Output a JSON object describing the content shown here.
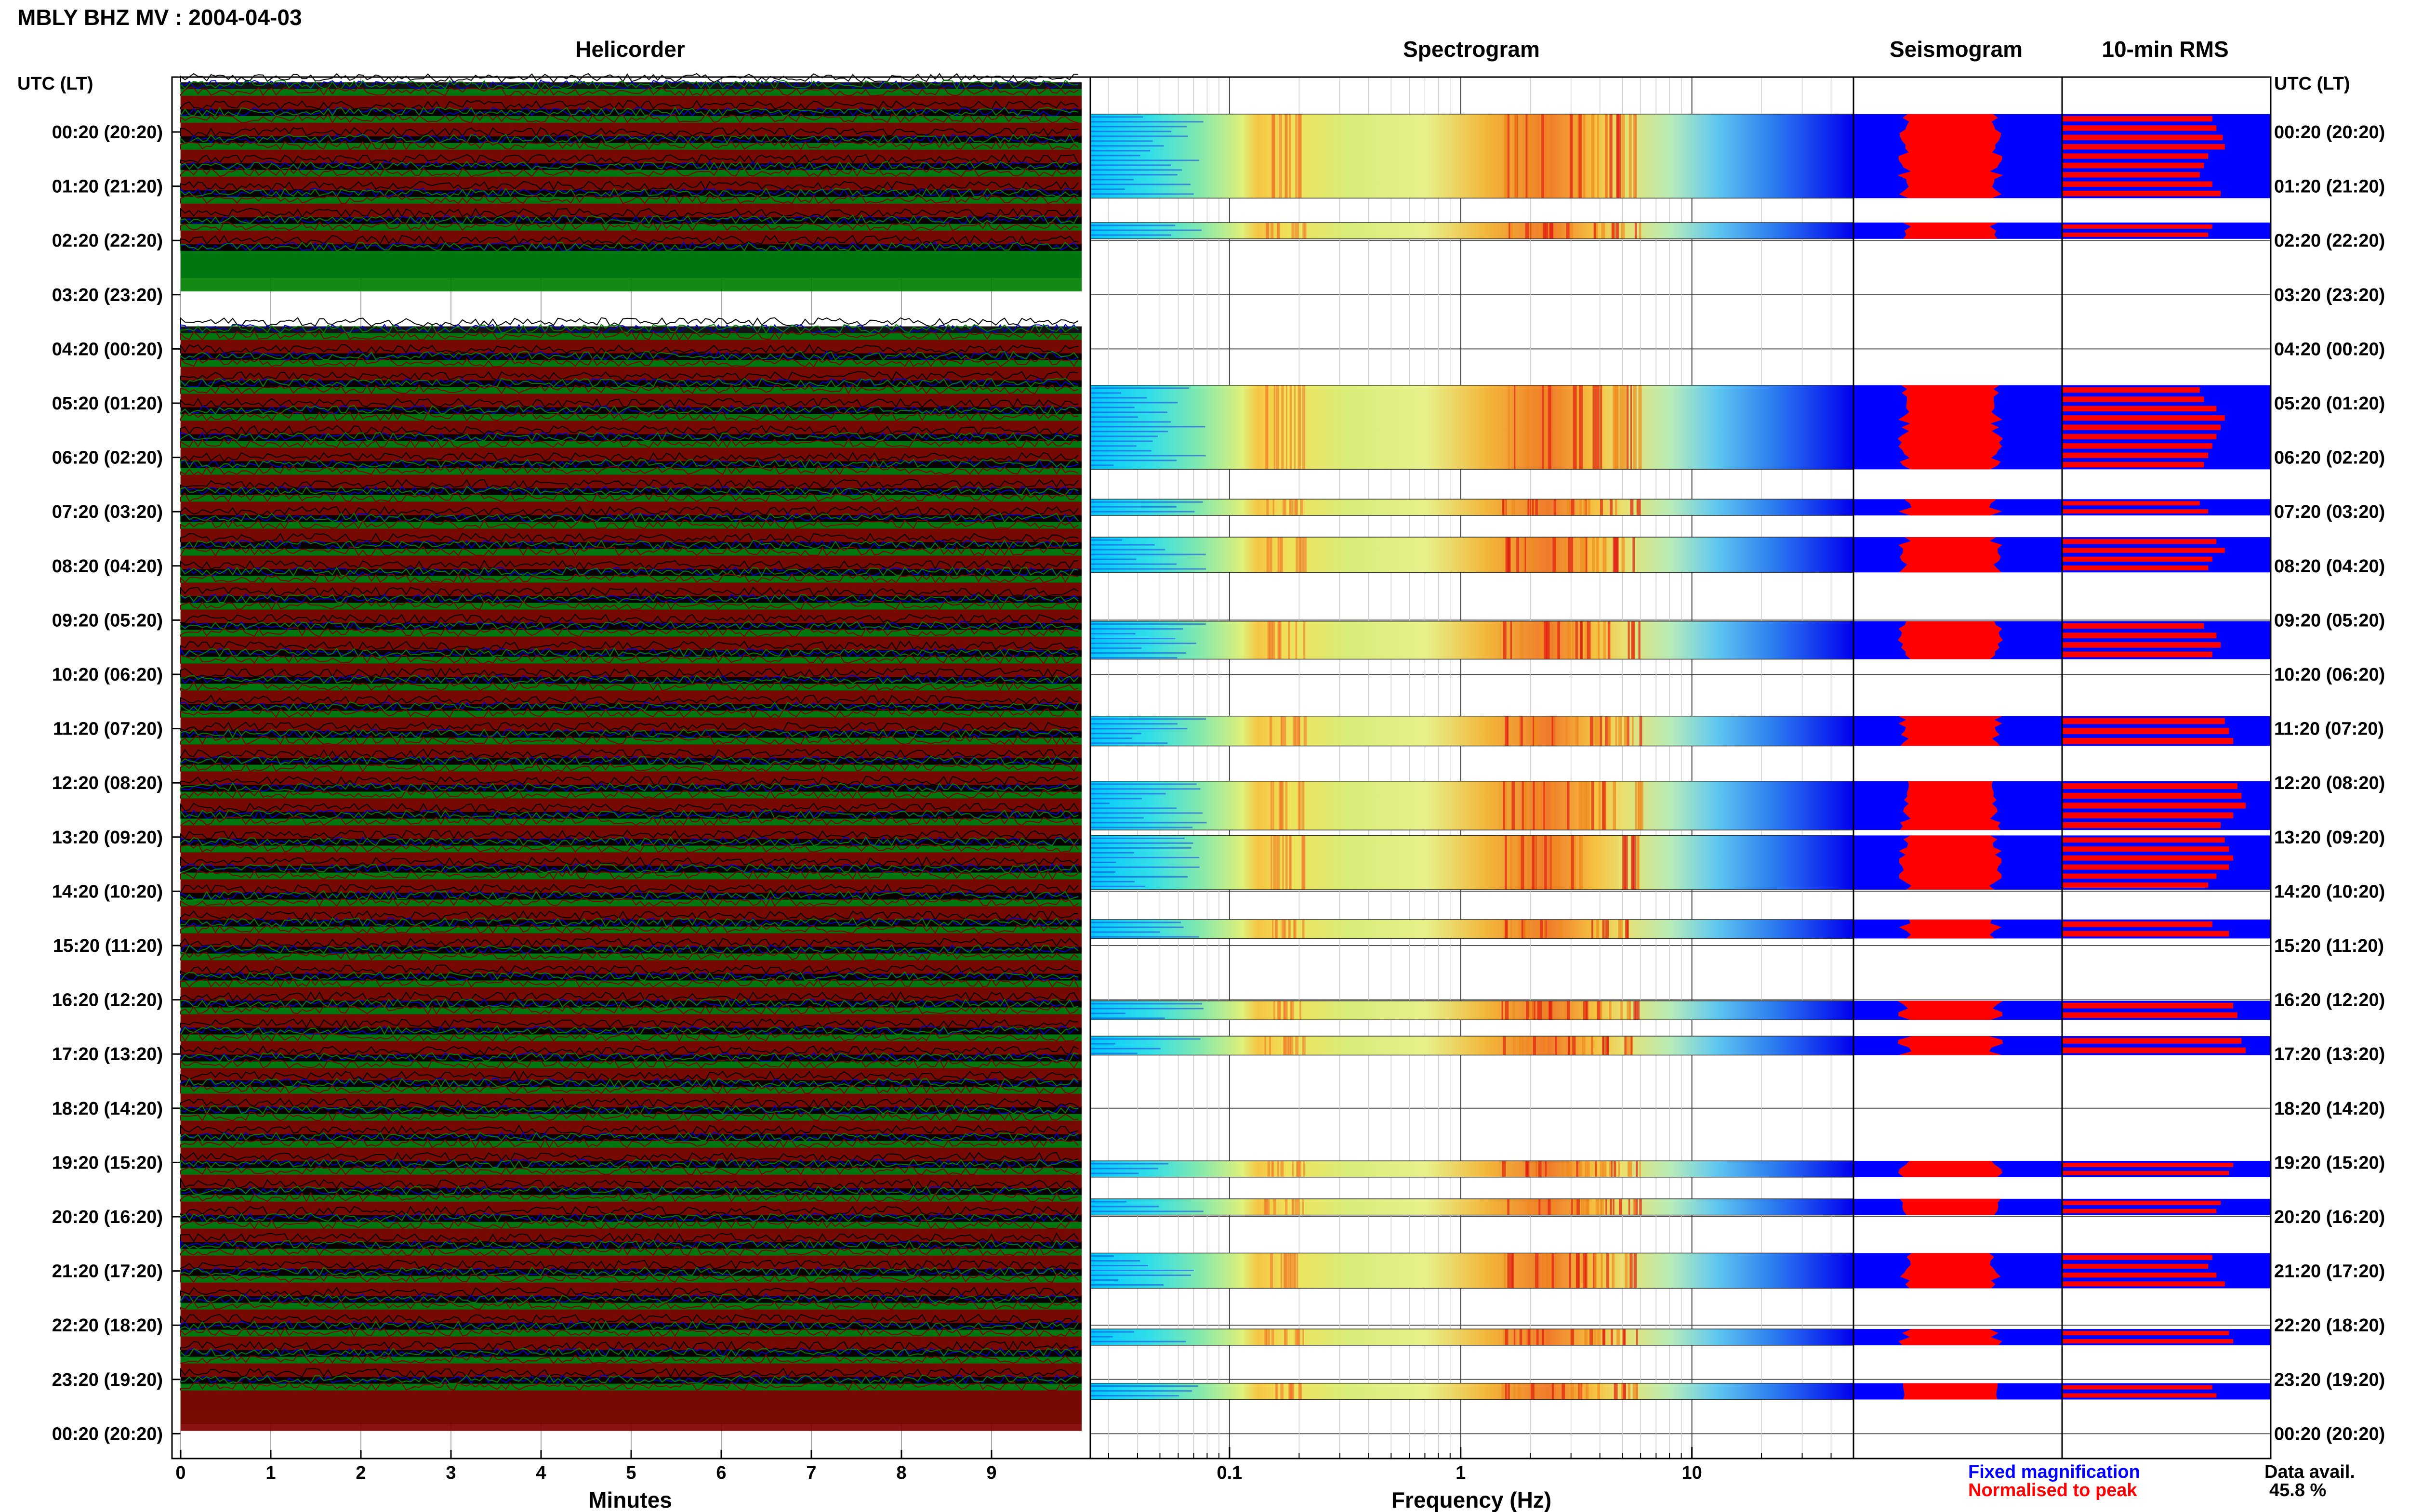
{
  "page_title": "MBLY BHZ MV : 2004-04-03",
  "panel_titles": {
    "helicorder": "Helicorder",
    "spectrogram": "Spectrogram",
    "seismogram": "Seismogram",
    "rms": "10-min RMS"
  },
  "axis_labels": {
    "utc_left": "UTC (LT)",
    "utc_right": "UTC (LT)",
    "minutes": "Minutes",
    "frequency": "Frequency (Hz)"
  },
  "legend": {
    "fixed": "Fixed magnification",
    "normalised": "Normalised to peak",
    "fixed_color": "#0000ff",
    "normalised_color": "#ff0000"
  },
  "data_avail": {
    "label": "Data avail.",
    "value": "45.8 %"
  },
  "colors": {
    "trace_black": "#000000",
    "trace_blue": "#0000cc",
    "trace_green": "#008000",
    "trace_darkred": "#800000",
    "fixed_blue": "#0000ff",
    "normalised_red": "#ff0000"
  },
  "chart_data": {
    "type": "heatmap",
    "time_rows": [
      "00:20 (20:20)",
      "01:20 (21:20)",
      "02:20 (22:20)",
      "03:20 (23:20)",
      "04:20 (00:20)",
      "05:20 (01:20)",
      "06:20 (02:20)",
      "07:20 (03:20)",
      "08:20 (04:20)",
      "09:20 (05:20)",
      "10:20 (06:20)",
      "11:20 (07:20)",
      "12:20 (08:20)",
      "13:20 (09:20)",
      "14:20 (10:20)",
      "15:20 (11:20)",
      "16:20 (12:20)",
      "17:20 (13:20)",
      "18:20 (14:20)",
      "19:20 (15:20)",
      "20:20 (16:20)",
      "21:20 (17:20)",
      "22:20 (18:20)",
      "23:20 (19:20)",
      "00:20 (20:20)"
    ],
    "helicorder": {
      "x_ticks": [
        "0",
        "1",
        "2",
        "3",
        "4",
        "5",
        "6",
        "7",
        "8",
        "9"
      ],
      "xlim": [
        0,
        10
      ],
      "series_colors": [
        "black",
        "blue",
        "green",
        "darkred"
      ],
      "data_bands_utc": [
        [
          0.0,
          2.9
        ],
        [
          4.5,
          18.0
        ],
        [
          18.4,
          24.0
        ]
      ]
    },
    "spectrogram": {
      "x_ticks": [
        "0.1",
        "1",
        "10"
      ],
      "xlim": [
        0.025,
        50
      ],
      "xscale": "log",
      "data_blocks_utc": [
        [
          0.0,
          1.55
        ],
        [
          2.0,
          2.3
        ],
        [
          5.0,
          6.55
        ],
        [
          7.1,
          7.4
        ],
        [
          7.8,
          8.45
        ],
        [
          9.35,
          10.05
        ],
        [
          11.1,
          11.65
        ],
        [
          12.3,
          13.2
        ],
        [
          13.3,
          14.3
        ],
        [
          14.85,
          15.2
        ],
        [
          16.35,
          16.7
        ],
        [
          17.0,
          17.35
        ],
        [
          19.3,
          19.6
        ],
        [
          20.0,
          20.3
        ],
        [
          21.0,
          21.65
        ],
        [
          22.4,
          22.7
        ],
        [
          23.4,
          23.7
        ]
      ]
    },
    "rms_bars": [
      0.72,
      0.74,
      0.77,
      0.78,
      0.7,
      0.68,
      0.66,
      0.72,
      0.76,
      0.72,
      0.7,
      0.66,
      0.68,
      0.74,
      0.78,
      0.76,
      0.74,
      0.72,
      0.7,
      0.68,
      0.66,
      0.7,
      0.74,
      0.78,
      0.72,
      0.7,
      0.68,
      0.74,
      0.76,
      0.72,
      0.78,
      0.8,
      0.82,
      0.84,
      0.86,
      0.88,
      0.82,
      0.76,
      0.78,
      0.8,
      0.82,
      0.8,
      0.74,
      0.7,
      0.72,
      0.8,
      0.82,
      0.84,
      0.86,
      0.88,
      0.82,
      0.8,
      0.76,
      0.74,
      0.72,
      0.7,
      0.74,
      0.78,
      0.8,
      0.82
    ]
  }
}
